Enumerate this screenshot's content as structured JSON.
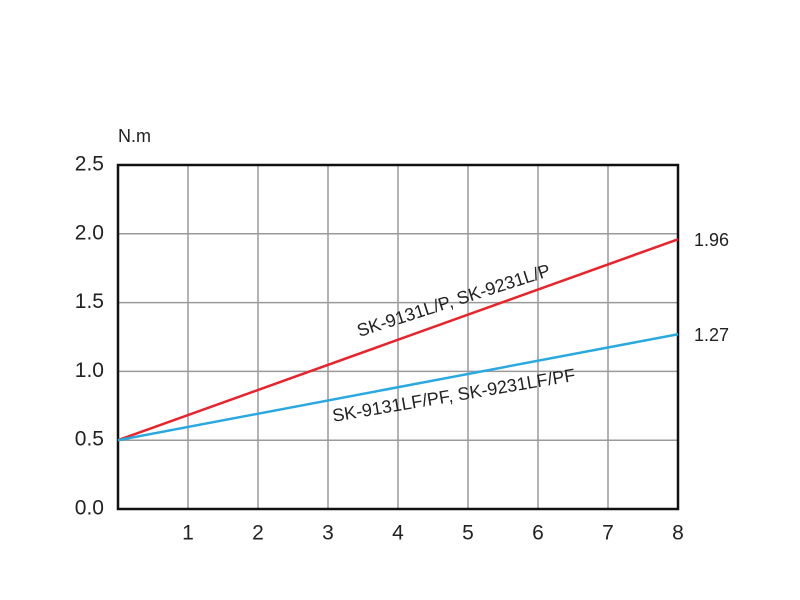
{
  "chart_data": {
    "type": "line",
    "y_label": "N.m",
    "x": [
      0,
      8
    ],
    "series": [
      {
        "name": "SK-9131L/P, SK-9231L/P",
        "color": "#e8232b",
        "values": [
          0.5,
          1.96
        ]
      },
      {
        "name": "SK-9131LF/PF, SK-9231LF/PF",
        "color": "#29a9e0",
        "values": [
          0.5,
          1.27
        ]
      }
    ],
    "xlim": [
      0,
      8
    ],
    "xticks": [
      1,
      2,
      3,
      4,
      5,
      6,
      7,
      8
    ],
    "ylim": [
      0,
      2.5
    ],
    "yticks": [
      {
        "value": 0,
        "label": "0.0"
      },
      0.5,
      {
        "value": 1,
        "label": "1.0"
      },
      1.5,
      {
        "value": 2,
        "label": "2.0"
      },
      2.5
    ],
    "grid": true
  }
}
